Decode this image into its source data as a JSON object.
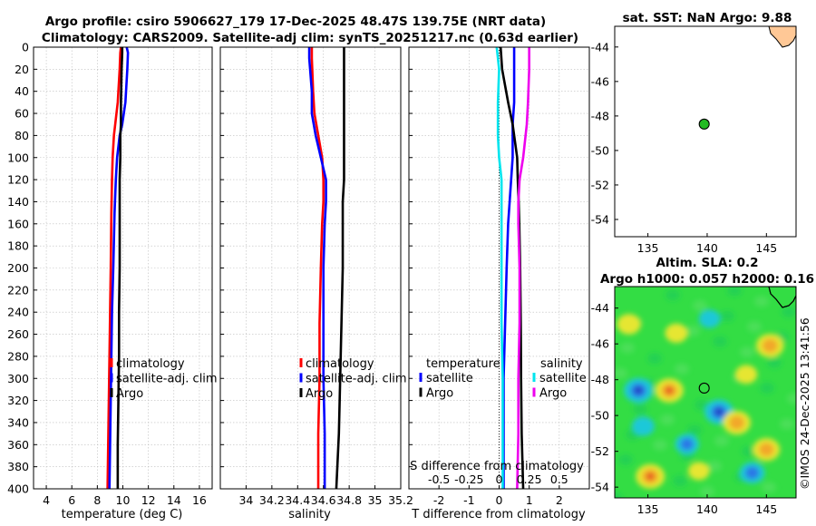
{
  "header": {
    "line1": "Argo profile: csiro 5906627_179 17-Dec-2025 48.47S 139.75E (NRT data)",
    "line2": "Climatology: CARS2009. Satellite-adj clim: synTS_20251217.nc (0.63d earlier)"
  },
  "watermark": "©IMOS 24-Dec-2025 13:41:56",
  "colors": {
    "red": "#ff0000",
    "blue": "#0000ff",
    "black": "#000000",
    "cyan": "#00e5ee",
    "magenta": "#ee00ee",
    "float_marker": "#22bb22",
    "land": "#ffc896"
  },
  "chart_data": [
    {
      "id": "temperature",
      "type": "line",
      "xlabel": "temperature (deg C)",
      "xlim": [
        3,
        17
      ],
      "xticks": [
        4,
        6,
        8,
        10,
        12,
        14,
        16
      ],
      "xtick_labels": [
        "4",
        "6",
        "8",
        "10",
        "12",
        "14",
        "16"
      ],
      "ylim": [
        400,
        0
      ],
      "yticks": [
        0,
        20,
        40,
        60,
        80,
        100,
        120,
        140,
        160,
        180,
        200,
        220,
        240,
        260,
        280,
        300,
        320,
        340,
        360,
        380,
        400
      ],
      "ytick_labels": [
        "0",
        "20",
        "40",
        "60",
        "80",
        "100",
        "120",
        "140",
        "160",
        "180",
        "200",
        "220",
        "240",
        "260",
        "280",
        "300",
        "320",
        "340",
        "360",
        "380",
        "400"
      ],
      "depth": [
        0,
        5,
        20,
        50,
        70,
        80,
        100,
        120,
        150,
        200,
        240,
        280,
        320,
        360,
        400
      ],
      "series": [
        {
          "name": "climatology",
          "color": "#ff0000",
          "values": [
            9.85,
            9.8,
            9.75,
            9.6,
            9.4,
            9.3,
            9.2,
            9.15,
            9.1,
            9.05,
            9.0,
            8.95,
            8.9,
            8.85,
            8.8
          ]
        },
        {
          "name": "satellite-adj. clim",
          "color": "#0000ff",
          "values": [
            10.3,
            10.4,
            10.35,
            10.2,
            9.95,
            9.75,
            9.55,
            9.45,
            9.35,
            9.25,
            9.15,
            9.1,
            9.05,
            9.0,
            8.95
          ]
        },
        {
          "name": "Argo",
          "color": "#000000",
          "values": [
            9.95,
            9.95,
            9.9,
            9.85,
            9.85,
            9.8,
            9.8,
            9.75,
            9.75,
            9.75,
            9.7,
            9.7,
            9.65,
            9.6,
            9.6
          ]
        }
      ],
      "legend": {
        "position": "right-middle",
        "entries": [
          "climatology",
          "satellite-adj. clim",
          "Argo"
        ]
      }
    },
    {
      "id": "salinity",
      "type": "line",
      "xlabel": "salinity",
      "xlim": [
        33.8,
        35.2
      ],
      "xticks": [
        34,
        34.2,
        34.4,
        34.6,
        34.8,
        35,
        35.2
      ],
      "xtick_labels": [
        "34",
        "34.2",
        "34.4",
        "34.6",
        "34.8",
        "35",
        "35.2"
      ],
      "ylim": [
        400,
        0
      ],
      "depth": [
        0,
        10,
        40,
        60,
        80,
        100,
        120,
        140,
        160,
        200,
        250,
        300,
        350,
        400
      ],
      "series": [
        {
          "name": "climatology",
          "color": "#ff0000",
          "values": [
            34.51,
            34.51,
            34.52,
            34.53,
            34.56,
            34.59,
            34.6,
            34.6,
            34.59,
            34.58,
            34.57,
            34.57,
            34.56,
            34.56
          ]
        },
        {
          "name": "satellite-adj. clim",
          "color": "#0000ff",
          "values": [
            34.49,
            34.49,
            34.51,
            34.51,
            34.54,
            34.58,
            34.62,
            34.62,
            34.61,
            34.6,
            34.6,
            34.6,
            34.61,
            34.61
          ]
        },
        {
          "name": "Argo",
          "color": "#000000",
          "values": [
            34.76,
            34.76,
            34.76,
            34.76,
            34.76,
            34.76,
            34.76,
            34.75,
            34.75,
            34.75,
            34.74,
            34.73,
            34.72,
            34.7
          ]
        }
      ],
      "legend": {
        "position": "right-middle",
        "entries": [
          "climatology",
          "satellite-adj. clim",
          "Argo"
        ]
      }
    },
    {
      "id": "differences",
      "type": "line",
      "xlabel": "T difference from climatology",
      "top_axis_label": "S difference from climatology",
      "xlim": [
        -3,
        3
      ],
      "xticks": [
        -2,
        -1,
        0,
        1,
        2
      ],
      "xtick_labels": [
        "-2",
        "-1",
        "0",
        "1",
        "2"
      ],
      "salinity_xticks": [
        -0.5,
        -0.25,
        0,
        0.25,
        0.5
      ],
      "salinity_xtick_labels": [
        "-0.5",
        "-0.25",
        "0",
        "0.25",
        "0.5"
      ],
      "ylim": [
        400,
        0
      ],
      "depth": [
        0,
        20,
        50,
        70,
        80,
        100,
        120,
        140,
        160,
        200,
        250,
        300,
        350,
        400
      ],
      "series": [
        {
          "name": "temperature satellite",
          "group": "temperature",
          "label": "satellite",
          "color": "#0000ff",
          "values": [
            0.5,
            0.5,
            0.5,
            0.45,
            0.45,
            0.45,
            0.4,
            0.35,
            0.3,
            0.25,
            0.2,
            0.15,
            0.15,
            0.15
          ]
        },
        {
          "name": "temperature Argo",
          "group": "temperature",
          "label": "Argo",
          "color": "#000000",
          "values": [
            0.05,
            0.1,
            0.3,
            0.45,
            0.5,
            0.6,
            0.62,
            0.65,
            0.67,
            0.7,
            0.72,
            0.73,
            0.75,
            0.8
          ]
        },
        {
          "name": "salinity satellite",
          "group": "salinity",
          "label": "satellite",
          "color": "#00e5ee",
          "values": [
            -0.02,
            0.0,
            -0.01,
            -0.01,
            -0.01,
            0.0,
            0.02,
            0.02,
            0.02,
            0.02,
            0.02,
            0.03,
            0.03,
            0.03
          ]
        },
        {
          "name": "salinity Argo",
          "group": "salinity",
          "label": "Argo",
          "color": "#ee00ee",
          "values": [
            0.25,
            0.25,
            0.24,
            0.23,
            0.22,
            0.2,
            0.17,
            0.16,
            0.16,
            0.17,
            0.17,
            0.16,
            0.16,
            0.15
          ]
        }
      ],
      "legend": {
        "position": "middle",
        "temperature_title": "temperature",
        "salinity_title": "salinity",
        "temperature_entries": [
          "satellite",
          "Argo"
        ],
        "salinity_entries": [
          "satellite",
          "Argo"
        ]
      }
    },
    {
      "id": "sst_map",
      "type": "scatter",
      "title": "sat. SST: NaN Argo: 9.88",
      "xlim": [
        132.2,
        147.5
      ],
      "ylim": [
        -55,
        -42.8
      ],
      "xticks": [
        135,
        140,
        145
      ],
      "xtick_labels": [
        "135",
        "140",
        "145"
      ],
      "yticks": [
        -54,
        -52,
        -50,
        -48,
        -46,
        -44
      ],
      "ytick_labels": [
        "-54",
        "-52",
        "-50",
        "-48",
        "-46",
        "-44"
      ],
      "float_position": {
        "lon": 139.75,
        "lat": -48.47
      }
    },
    {
      "id": "sla_map",
      "type": "heatmap",
      "title_line1": "Altim. SLA: 0.2",
      "title_line2": "Argo h1000: 0.057 h2000: 0.16",
      "xlim": [
        132.2,
        147.5
      ],
      "ylim": [
        -54.6,
        -42.8
      ],
      "xticks": [
        135,
        140,
        145
      ],
      "xtick_labels": [
        "135",
        "140",
        "145"
      ],
      "yticks": [
        -54,
        -52,
        -50,
        -48,
        -46,
        -44
      ],
      "ytick_labels": [
        "-54",
        "-52",
        "-50",
        "-48",
        "-46",
        "-44"
      ],
      "float_position": {
        "lon": 139.75,
        "lat": -48.47
      },
      "background_color": "#33dd44",
      "anomalies": [
        {
          "lon": 134.2,
          "lat": -48.6,
          "value": -1.0
        },
        {
          "lon": 141.0,
          "lat": -49.8,
          "value": -1.0
        },
        {
          "lon": 138.3,
          "lat": -51.6,
          "value": -0.6
        },
        {
          "lon": 143.8,
          "lat": -53.2,
          "value": -0.7
        },
        {
          "lon": 134.6,
          "lat": -50.6,
          "value": -0.5
        },
        {
          "lon": 140.2,
          "lat": -44.6,
          "value": -0.4
        },
        {
          "lon": 136.8,
          "lat": -48.6,
          "value": 0.95
        },
        {
          "lon": 142.5,
          "lat": -50.4,
          "value": 0.9
        },
        {
          "lon": 145.3,
          "lat": -46.1,
          "value": 0.9
        },
        {
          "lon": 135.2,
          "lat": -53.4,
          "value": 1.0
        },
        {
          "lon": 145.0,
          "lat": -51.9,
          "value": 0.85
        },
        {
          "lon": 133.4,
          "lat": -44.9,
          "value": 0.6
        },
        {
          "lon": 137.4,
          "lat": -45.4,
          "value": 0.5
        },
        {
          "lon": 143.3,
          "lat": -47.7,
          "value": 0.45
        },
        {
          "lon": 139.3,
          "lat": -53.1,
          "value": 0.4
        }
      ]
    }
  ]
}
